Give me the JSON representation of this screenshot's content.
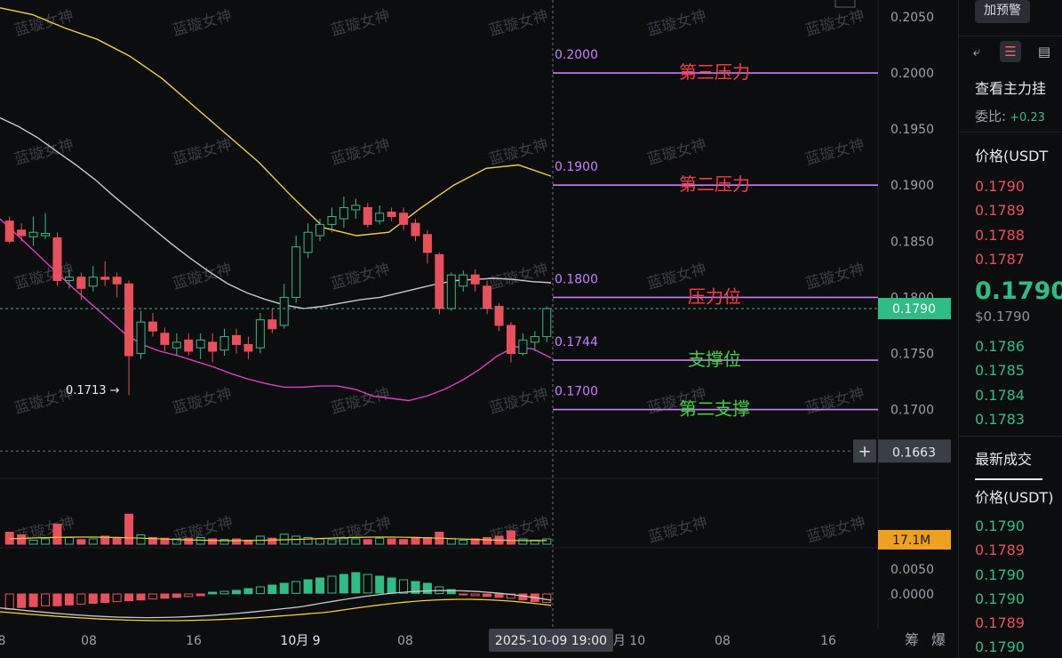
{
  "watermark": "蓝璇女神",
  "colors": {
    "up": "#2ebd85",
    "down": "#e8505b",
    "level": "#c77dff",
    "label_red": "#ff3b3b",
    "label_green": "#40d040",
    "ma_yellow": "#f0d040",
    "ma_white": "#c8c8c8",
    "ma_pink": "#e040c0"
  },
  "chart_data": {
    "type": "candlestick",
    "price_axis": {
      "range": [
        0.1645,
        0.2065
      ],
      "ticks": [
        "0.2050",
        "0.2000",
        "0.1950",
        "0.1900",
        "0.1850",
        "0.1800",
        "0.1750",
        "0.1700"
      ]
    },
    "current_price": "0.1790",
    "crosshair_price": "0.1663",
    "low_annotation": "0.1713",
    "low_value": 0.1713,
    "levels": [
      {
        "value": 0.2,
        "price_text": "0.2000",
        "label": "第三压力",
        "tone": "red"
      },
      {
        "value": 0.19,
        "price_text": "0.1900",
        "label": "第二压力",
        "tone": "red"
      },
      {
        "value": 0.18,
        "price_text": "0.1800",
        "label": "压力位",
        "tone": "red"
      },
      {
        "value": 0.1744,
        "price_text": "0.1744",
        "label": "支撑位",
        "tone": "green"
      },
      {
        "value": 0.17,
        "price_text": "0.1700",
        "label": "第二支撑",
        "tone": "green"
      }
    ],
    "candles": [
      [
        0.1868,
        0.185,
        0.1872,
        0.1848
      ],
      [
        0.186,
        0.1855,
        0.1866,
        0.185
      ],
      [
        0.1854,
        0.1858,
        0.1872,
        0.1846
      ],
      [
        0.1855,
        0.1857,
        0.1875,
        0.1852
      ],
      [
        0.1853,
        0.1815,
        0.1858,
        0.181
      ],
      [
        0.1815,
        0.1818,
        0.1825,
        0.1808
      ],
      [
        0.1818,
        0.1808,
        0.1822,
        0.1798
      ],
      [
        0.181,
        0.1818,
        0.1828,
        0.1805
      ],
      [
        0.1818,
        0.1816,
        0.1832,
        0.181
      ],
      [
        0.1818,
        0.1812,
        0.1822,
        0.18
      ],
      [
        0.1812,
        0.1748,
        0.1815,
        0.1713
      ],
      [
        0.175,
        0.1778,
        0.1788,
        0.1745
      ],
      [
        0.1778,
        0.177,
        0.1786,
        0.1765
      ],
      [
        0.1768,
        0.1758,
        0.1773,
        0.1752
      ],
      [
        0.1755,
        0.176,
        0.1768,
        0.1748
      ],
      [
        0.1762,
        0.1752,
        0.1768,
        0.1748
      ],
      [
        0.1755,
        0.1762,
        0.1768,
        0.1745
      ],
      [
        0.176,
        0.1752,
        0.1768,
        0.1742
      ],
      [
        0.1753,
        0.1765,
        0.1772,
        0.1748
      ],
      [
        0.1766,
        0.1758,
        0.1772,
        0.175
      ],
      [
        0.1758,
        0.1752,
        0.1765,
        0.1745
      ],
      [
        0.1755,
        0.178,
        0.1786,
        0.175
      ],
      [
        0.178,
        0.1772,
        0.179,
        0.1768
      ],
      [
        0.1775,
        0.18,
        0.1812,
        0.1772
      ],
      [
        0.18,
        0.1845,
        0.1855,
        0.1795
      ],
      [
        0.184,
        0.1858,
        0.1866,
        0.1835
      ],
      [
        0.1855,
        0.1865,
        0.187,
        0.185
      ],
      [
        0.1865,
        0.1872,
        0.188,
        0.1858
      ],
      [
        0.187,
        0.188,
        0.189,
        0.1862
      ],
      [
        0.1878,
        0.1882,
        0.1888,
        0.187
      ],
      [
        0.188,
        0.1865,
        0.1884,
        0.1862
      ],
      [
        0.1868,
        0.1875,
        0.1882,
        0.1865
      ],
      [
        0.1876,
        0.1872,
        0.188,
        0.1868
      ],
      [
        0.1875,
        0.1865,
        0.188,
        0.186
      ],
      [
        0.1866,
        0.1855,
        0.187,
        0.185
      ],
      [
        0.1856,
        0.184,
        0.186,
        0.183
      ],
      [
        0.1838,
        0.179,
        0.184,
        0.1785
      ],
      [
        0.179,
        0.182,
        0.1822,
        0.1788
      ],
      [
        0.181,
        0.182,
        0.1824,
        0.1805
      ],
      [
        0.182,
        0.1812,
        0.1825,
        0.1805
      ],
      [
        0.181,
        0.179,
        0.1815,
        0.1785
      ],
      [
        0.1792,
        0.1775,
        0.1795,
        0.177
      ],
      [
        0.1775,
        0.175,
        0.1778,
        0.1742
      ],
      [
        0.175,
        0.1762,
        0.1768,
        0.1748
      ],
      [
        0.176,
        0.1765,
        0.177,
        0.1752
      ],
      [
        0.1765,
        0.179,
        0.1792,
        0.176
      ]
    ],
    "ma_upper": [
      0.2058,
      0.2052,
      0.204,
      0.203,
      0.2015,
      0.1995,
      0.197,
      0.1945,
      0.192,
      0.189,
      0.1862,
      0.1855,
      0.1858,
      0.188,
      0.19,
      0.1915,
      0.1918,
      0.1908
    ],
    "ma_mid": [
      0.196,
      0.1952,
      0.1942,
      0.193,
      0.1918,
      0.1905,
      0.189,
      0.1876,
      0.1862,
      0.1848,
      0.1835,
      0.1823,
      0.1812,
      0.1804,
      0.1798,
      0.1793,
      0.179,
      0.1792,
      0.1795,
      0.1798,
      0.18,
      0.1804,
      0.1808,
      0.1812,
      0.1815,
      0.1816,
      0.1817,
      0.1816,
      0.1814,
      0.1813
    ],
    "ma_lower": [
      0.187,
      0.1855,
      0.184,
      0.1825,
      0.181,
      0.1796,
      0.1782,
      0.1768,
      0.1758,
      0.1752,
      0.1748,
      0.1743,
      0.1738,
      0.1732,
      0.1727,
      0.1723,
      0.172,
      0.172,
      0.1721,
      0.1721,
      0.1718,
      0.1712,
      0.171,
      0.1708,
      0.1712,
      0.1718,
      0.1726,
      0.1736,
      0.1748,
      0.1756,
      0.1754,
      0.1746
    ],
    "volume": {
      "ma_label": "17.1M",
      "bars": [
        18,
        14,
        6,
        8,
        30,
        10,
        7,
        8,
        12,
        9,
        45,
        14,
        10,
        9,
        8,
        9,
        10,
        8,
        7,
        8,
        6,
        12,
        9,
        15,
        12,
        10,
        8,
        7,
        9,
        8,
        7,
        9,
        8,
        7,
        9,
        10,
        18,
        8,
        6,
        8,
        10,
        12,
        20,
        8,
        6,
        8
      ]
    },
    "macd": {
      "ticks": [
        "0.0050",
        "0.0000"
      ],
      "hist": [
        -18,
        -16,
        -15,
        -14,
        -14,
        -13,
        -12,
        -11,
        -10,
        -9,
        -8,
        -7,
        -6,
        -5,
        -4,
        -3,
        -2,
        2,
        3,
        4,
        6,
        8,
        10,
        12,
        14,
        16,
        18,
        20,
        22,
        24,
        22,
        20,
        18,
        16,
        14,
        12,
        8,
        5,
        -1,
        -2,
        -3,
        -4,
        -5,
        -7,
        -9,
        -10
      ]
    },
    "x_axis": {
      "ticks": [
        "8",
        "08",
        "16",
        "10月 9",
        "08",
        "2025-10-09 19:00",
        "月 10",
        "08",
        "16"
      ]
    }
  },
  "panel": {
    "warning_button": "加预警",
    "order_book_title": "查看主力挂",
    "ratio_label": "委比:",
    "ratio_value": "+0.23",
    "price_header": "价格(USDT",
    "asks": [
      "0.1790",
      "0.1789",
      "0.1788",
      "0.1787"
    ],
    "last_price": "0.1790",
    "last_price_usd": "$0.1790",
    "bids": [
      "0.1786",
      "0.1785",
      "0.1784",
      "0.1783"
    ],
    "trades_title": "最新成交",
    "trades_header": "价格(USDT)",
    "trades": [
      {
        "price": "0.1790",
        "side": "buy"
      },
      {
        "price": "0.1789",
        "side": "sell"
      },
      {
        "price": "0.1790",
        "side": "buy"
      },
      {
        "price": "0.1790",
        "side": "buy"
      },
      {
        "price": "0.1789",
        "side": "sell"
      },
      {
        "price": "0.1790",
        "side": "buy"
      }
    ]
  },
  "bottom_icons": [
    "筹",
    "爆"
  ]
}
